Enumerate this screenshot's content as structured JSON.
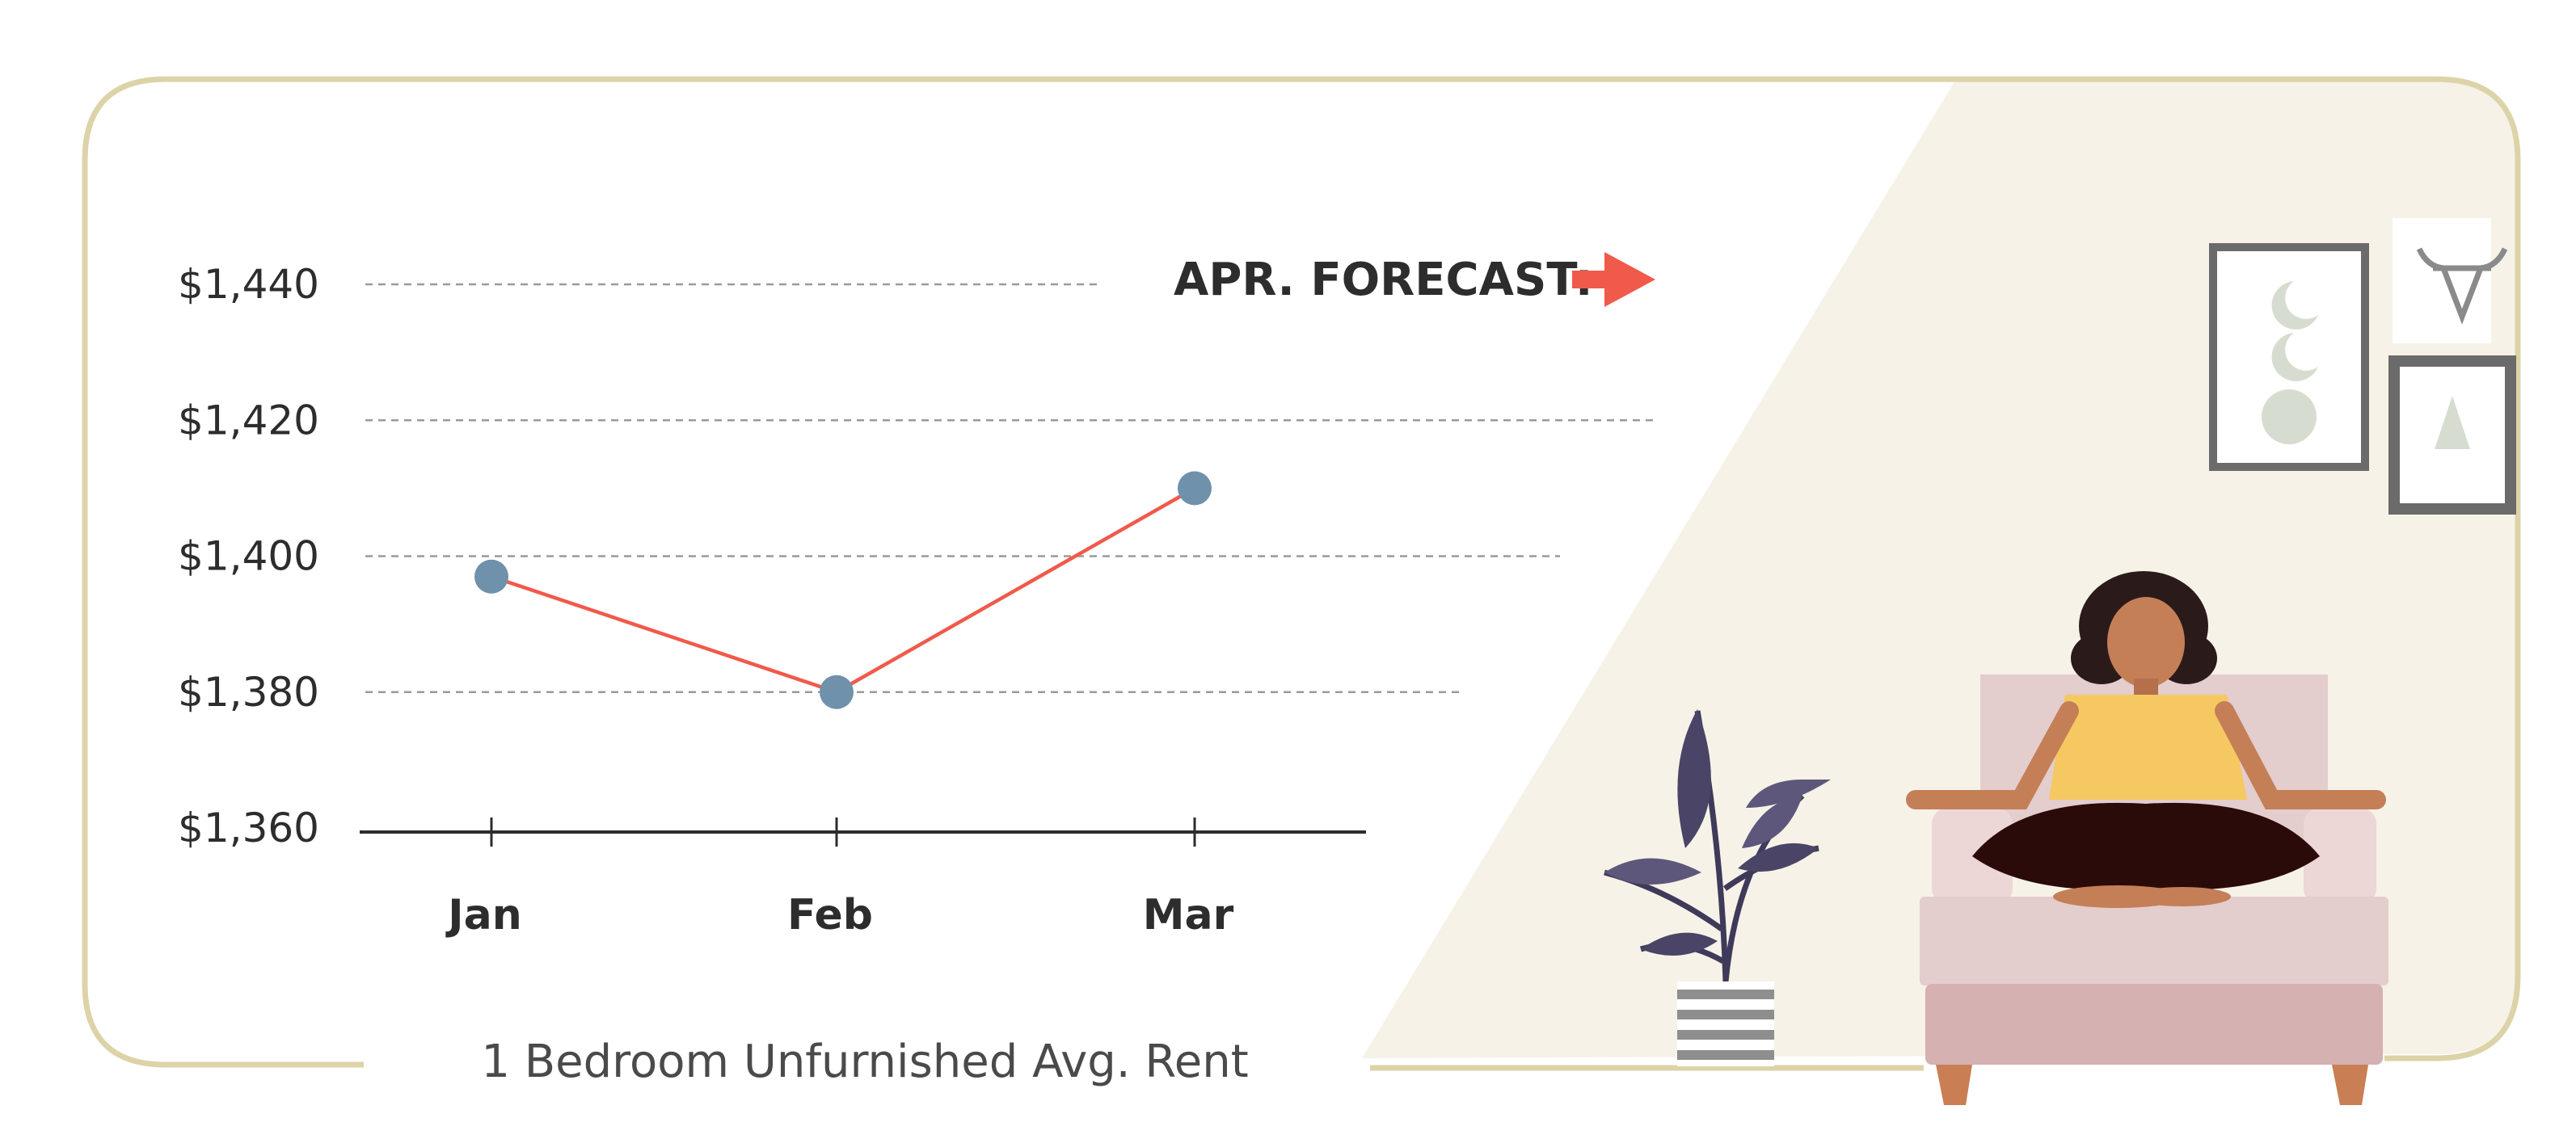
{
  "chart_data": {
    "type": "line",
    "categories": [
      "Jan",
      "Feb",
      "Mar"
    ],
    "series": [
      {
        "values": [
          1397,
          1380,
          1410
        ]
      }
    ],
    "ylim": [
      1360,
      1440
    ],
    "y_ticks": [
      1360,
      1380,
      1400,
      1420,
      1440
    ],
    "y_tick_labels": [
      "$1,360",
      "$1,380",
      "$1,400",
      "$1,420",
      "$1,440"
    ],
    "title": "",
    "xlabel": "1 Bedroom Unfurnished Avg. Rent",
    "ylabel": "",
    "grid": true,
    "annotation": "APR. FORECAST:",
    "colors": {
      "line": "#f05a4b",
      "marker": "#6f91ab",
      "grid": "#9a9a9a",
      "axis": "#2d2d2d"
    }
  },
  "theme": {
    "frame": "#ddd3a8",
    "room_bg": "#f6f2e7",
    "accent": "#f05a4b"
  },
  "illustration": {
    "icons": [
      "bull-logo-icon",
      "moon-phases-frame-icon",
      "triangle-frame-icon",
      "potted-plant-icon",
      "meditating-woman-icon",
      "sofa-icon"
    ]
  }
}
